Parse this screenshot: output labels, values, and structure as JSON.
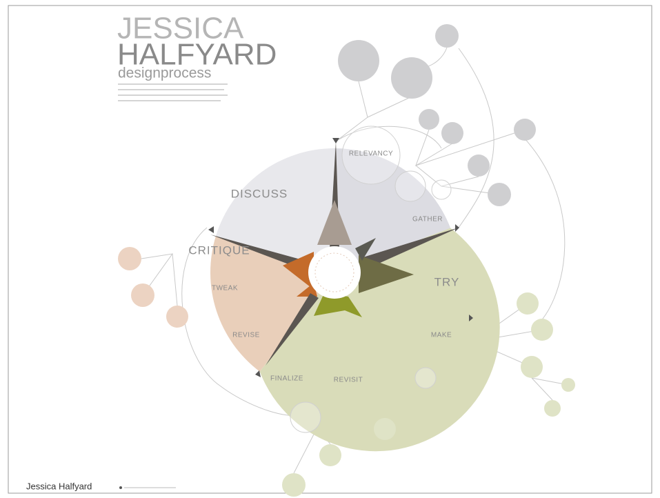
{
  "header": {
    "first_name": "JESSICA",
    "last_name": "HALFYARD",
    "subtitle": "designprocess"
  },
  "phases": [
    {
      "label": "DISCUSS"
    },
    {
      "label": "CRITIQUE"
    },
    {
      "label": "TRY"
    }
  ],
  "steps": [
    {
      "label": "RELEVANCY"
    },
    {
      "label": "GATHER"
    },
    {
      "label": "TWEAK"
    },
    {
      "label": "REVISE"
    },
    {
      "label": "FINALIZE"
    },
    {
      "label": "REVISIT"
    },
    {
      "label": "MAKE"
    }
  ],
  "footer": {
    "author": "Jessica Halfyard"
  }
}
